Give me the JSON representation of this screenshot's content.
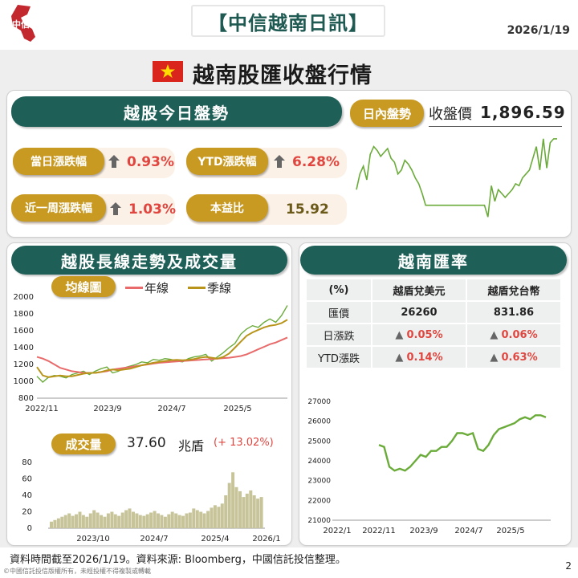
{
  "header": {
    "title": "【中信越南日訊】",
    "date": "2026/1/19",
    "logo_text": "中信",
    "subtitle": "越南股匯收盤行情"
  },
  "today": {
    "panel_title": "越股今日盤勢",
    "daily_label": "當日漲跌幅",
    "daily_value": "0.93%",
    "ytd_label": "YTD漲跌幅",
    "ytd_value": "6.28%",
    "week_label": "近一周漲跌幅",
    "week_value": "1.03%",
    "pe_label": "本益比",
    "pe_value": "15.92"
  },
  "intraday": {
    "pill": "日內盤勢",
    "close_label": "收盤價",
    "close_value": "1,896.59"
  },
  "longterm": {
    "panel_title": "越股長線走勢及成交量",
    "ma_pill": "均線圖",
    "legend_year": "年線",
    "legend_quarter": "季線",
    "volume_pill": "成交量",
    "volume_value": "37.60",
    "volume_unit": "兆盾",
    "volume_change": "(+ 13.02%)"
  },
  "fx": {
    "panel_title": "越南匯率",
    "col0": "(%)",
    "col1": "越盾兌美元",
    "col2": "越盾兌台幣",
    "row_rate_label": "匯價",
    "row_rate_usd": "26260",
    "row_rate_twd": "831.86",
    "row_day_label": "日漲跌",
    "row_day_usd": "0.05%",
    "row_day_twd": "0.06%",
    "row_ytd_label": "YTD漲跌",
    "row_ytd_usd": "0.14%",
    "row_ytd_twd": "0.63%"
  },
  "footer": {
    "source": "資料時間截至2026/1/19。資料來源: Bloomberg，中國信託投信整理。",
    "copyright": "©中國信託投信版權所有，未經投權不得複製或轉載",
    "page": "2"
  },
  "colors": {
    "teal": "#1e5f57",
    "gold": "#c89a22",
    "index_line": "#6aab3a",
    "year_line": "#e86a6a",
    "quarter_line": "#b8951a",
    "volume_fill": "#c8c49a",
    "up_red": "#e0463f"
  },
  "chart_data": [
    {
      "id": "intraday",
      "type": "line",
      "title": "日內盤勢",
      "x": [
        0,
        1,
        2,
        3,
        4,
        5,
        6,
        7,
        8,
        9,
        10,
        11,
        12,
        13,
        14,
        15,
        16,
        17,
        18,
        19,
        20,
        21,
        22,
        23,
        24,
        25,
        26,
        27,
        28,
        29,
        30,
        31,
        32,
        33,
        34,
        35,
        36,
        37,
        38,
        39,
        40,
        41,
        42,
        43,
        44,
        45,
        46,
        47,
        48,
        49,
        50,
        51,
        52,
        53,
        54,
        55,
        56,
        57,
        58
      ],
      "y": [
        1870,
        1878,
        1882,
        1875,
        1888,
        1892,
        1890,
        1887,
        1889,
        1891,
        1886,
        1884,
        1878,
        1880,
        1885,
        1883,
        1880,
        1876,
        1873,
        1868,
        1862,
        1862,
        1862,
        1862,
        1862,
        1862,
        1862,
        1862,
        1862,
        1862,
        1862,
        1862,
        1862,
        1862,
        1862,
        1862,
        1862,
        1862,
        1856,
        1872,
        1864,
        1870,
        1868,
        1866,
        1868,
        1870,
        1873,
        1872,
        1876,
        1878,
        1880,
        1886,
        1892,
        1880,
        1896,
        1881,
        1894,
        1896,
        1896
      ],
      "ylim": [
        1852,
        1898
      ]
    },
    {
      "id": "long-term-index",
      "type": "line",
      "x_ticks": [
        "2022/11",
        "2023/9",
        "2024/7",
        "2025/5"
      ],
      "y_ticks": [
        800,
        1000,
        1200,
        1400,
        1600,
        1800,
        2000
      ],
      "ylim": [
        800,
        2000
      ],
      "series": [
        {
          "name": "",
          "values": [
            1060,
            990,
            1050,
            1070,
            1060,
            1040,
            1080,
            1100,
            1120,
            1080,
            1120,
            1150,
            1170,
            1100,
            1120,
            1160,
            1180,
            1200,
            1230,
            1220,
            1260,
            1250,
            1270,
            1260,
            1240,
            1230,
            1270,
            1290,
            1300,
            1320,
            1240,
            1290,
            1340,
            1400,
            1450,
            1560,
            1620,
            1660,
            1640,
            1700,
            1740,
            1700,
            1780,
            1900
          ]
        },
        {
          "name": "年線",
          "values": [
            1290,
            1270,
            1240,
            1200,
            1160,
            1140,
            1120,
            1110,
            1100,
            1100,
            1100,
            1110,
            1120,
            1140,
            1150,
            1160,
            1170,
            1180,
            1190,
            1200,
            1210,
            1220,
            1225,
            1230,
            1235,
            1240,
            1245,
            1250,
            1255,
            1260,
            1265,
            1270,
            1275,
            1280,
            1290,
            1300,
            1320,
            1350,
            1380,
            1410,
            1440,
            1460,
            1490,
            1520
          ]
        },
        {
          "name": "季線",
          "values": [
            1170,
            1070,
            1050,
            1060,
            1070,
            1060,
            1060,
            1075,
            1090,
            1100,
            1100,
            1110,
            1130,
            1140,
            1130,
            1140,
            1150,
            1170,
            1190,
            1205,
            1220,
            1230,
            1240,
            1250,
            1255,
            1250,
            1255,
            1265,
            1280,
            1290,
            1280,
            1270,
            1290,
            1330,
            1400,
            1470,
            1540,
            1580,
            1610,
            1640,
            1660,
            1670,
            1690,
            1730
          ]
        }
      ]
    },
    {
      "id": "volume",
      "type": "bar",
      "x_ticks": [
        "2023/10",
        "2024/7",
        "2025/4",
        "2026/1"
      ],
      "y_ticks": [
        0,
        20,
        40,
        60,
        80
      ],
      "ylim": [
        0,
        80
      ],
      "values": [
        8,
        10,
        12,
        14,
        16,
        18,
        15,
        17,
        20,
        16,
        14,
        18,
        22,
        19,
        16,
        14,
        18,
        20,
        17,
        15,
        19,
        22,
        24,
        20,
        18,
        16,
        15,
        17,
        19,
        21,
        18,
        16,
        14,
        17,
        20,
        18,
        16,
        15,
        18,
        19,
        24,
        22,
        20,
        18,
        21,
        25,
        28,
        26,
        30,
        40,
        55,
        68,
        50,
        45,
        38,
        42,
        46,
        40,
        36,
        38
      ]
    },
    {
      "id": "fx-usd",
      "type": "line",
      "x_ticks": [
        "2022/1",
        "2022/11",
        "2023/9",
        "2024/7",
        "2025/5"
      ],
      "y_ticks": [
        21000,
        22000,
        23000,
        24000,
        25000,
        26000,
        27000
      ],
      "ylim": [
        21000,
        27000
      ],
      "values": [
        24800,
        24700,
        23700,
        23500,
        23600,
        23500,
        23700,
        24000,
        24300,
        24200,
        24500,
        24500,
        24700,
        24700,
        25000,
        25400,
        25400,
        25300,
        25400,
        24600,
        24500,
        24800,
        25300,
        25600,
        25700,
        25800,
        25900,
        26100,
        26200,
        26100,
        26300,
        26300,
        26200
      ]
    }
  ]
}
